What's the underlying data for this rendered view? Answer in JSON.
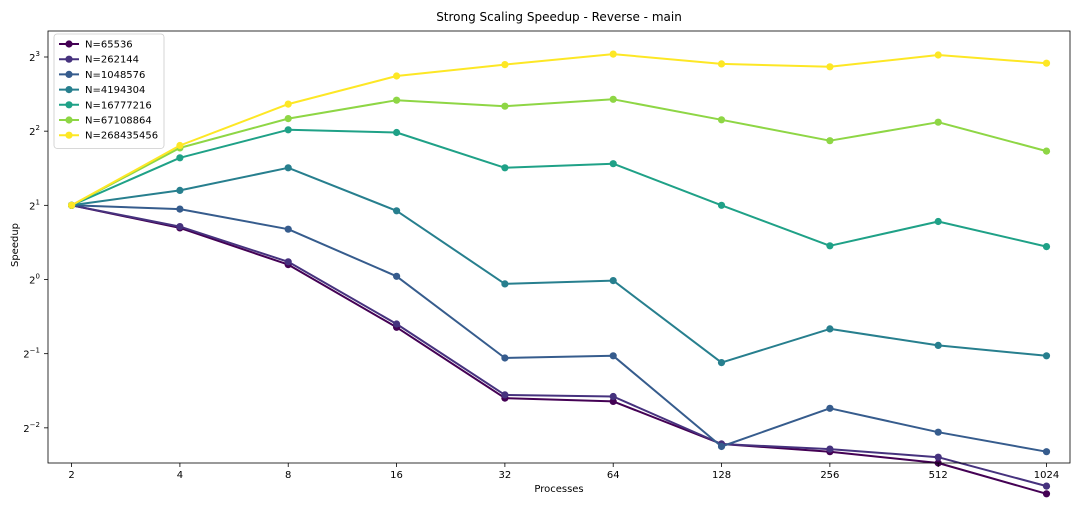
{
  "chart_data": {
    "type": "line",
    "title": "Strong Scaling Speedup - Reverse - main",
    "xlabel": "Processes",
    "ylabel": "Speedup",
    "x_scale": "log2",
    "y_scale": "log2",
    "x": [
      2,
      4,
      8,
      16,
      32,
      64,
      128,
      256,
      512,
      1024
    ],
    "xlim": [
      1.72,
      1190
    ],
    "ylim": [
      0.18,
      10.2
    ],
    "ytick_labels": [
      {
        "base": "2",
        "exp": "−2",
        "value": 0.25
      },
      {
        "base": "2",
        "exp": "−1",
        "value": 0.5
      },
      {
        "base": "2",
        "exp": "0",
        "value": 1
      },
      {
        "base": "2",
        "exp": "1",
        "value": 2
      },
      {
        "base": "2",
        "exp": "2",
        "value": 4
      },
      {
        "base": "2",
        "exp": "3",
        "value": 8
      }
    ],
    "legend_position": "top-left",
    "grid": false,
    "series": [
      {
        "name": "N=65536",
        "color": "#440154",
        "values": [
          2.0,
          1.62,
          1.15,
          0.64,
          0.33,
          0.32,
          0.215,
          0.2,
          0.18,
          0.135
        ]
      },
      {
        "name": "N=262144",
        "color": "#46327e",
        "values": [
          2.0,
          1.64,
          1.18,
          0.66,
          0.34,
          0.335,
          0.215,
          0.205,
          0.19,
          0.145
        ]
      },
      {
        "name": "N=1048576",
        "color": "#365c8d",
        "values": [
          2.0,
          1.93,
          1.6,
          1.03,
          0.48,
          0.49,
          0.21,
          0.3,
          0.24,
          0.2
        ]
      },
      {
        "name": "N=4194304",
        "color": "#277f8e",
        "values": [
          2.0,
          2.3,
          2.84,
          1.9,
          0.96,
          0.99,
          0.46,
          0.63,
          0.54,
          0.49
        ]
      },
      {
        "name": "N=16777216",
        "color": "#1fa187",
        "values": [
          2.0,
          3.12,
          4.05,
          3.95,
          2.84,
          2.95,
          2.0,
          1.37,
          1.72,
          1.36
        ]
      },
      {
        "name": "N=67108864",
        "color": "#8ed645",
        "values": [
          2.0,
          3.42,
          4.5,
          5.34,
          5.05,
          5.39,
          4.45,
          3.66,
          4.35,
          3.32
        ]
      },
      {
        "name": "N=268435456",
        "color": "#fde725",
        "values": [
          2.0,
          3.5,
          5.15,
          6.7,
          7.45,
          8.22,
          7.5,
          7.3,
          8.15,
          7.55
        ]
      }
    ]
  }
}
